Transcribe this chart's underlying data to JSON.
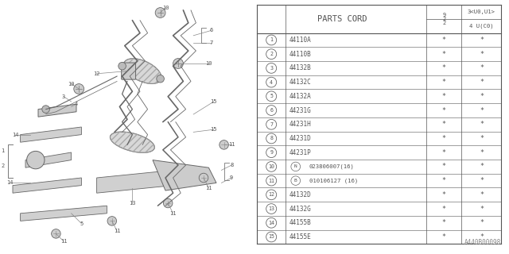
{
  "title": "PARTS CORD",
  "col_header_narrow": "9\n2\n2",
  "col_header_wide_top": "3<U0,U1>",
  "col_header_wide_bot": "4 U(C0)",
  "rows": [
    {
      "num": "1",
      "code": "44110A",
      "n_prefix": "",
      "b_prefix": "",
      "star1": "*",
      "star2": "*"
    },
    {
      "num": "2",
      "code": "44110B",
      "n_prefix": "",
      "b_prefix": "",
      "star1": "*",
      "star2": "*"
    },
    {
      "num": "3",
      "code": "44132B",
      "n_prefix": "",
      "b_prefix": "",
      "star1": "*",
      "star2": "*"
    },
    {
      "num": "4",
      "code": "44132C",
      "n_prefix": "",
      "b_prefix": "",
      "star1": "*",
      "star2": "*"
    },
    {
      "num": "5",
      "code": "44132A",
      "n_prefix": "",
      "b_prefix": "",
      "star1": "*",
      "star2": "*"
    },
    {
      "num": "6",
      "code": "44231G",
      "n_prefix": "",
      "b_prefix": "",
      "star1": "*",
      "star2": "*"
    },
    {
      "num": "7",
      "code": "44231H",
      "n_prefix": "",
      "b_prefix": "",
      "star1": "*",
      "star2": "*"
    },
    {
      "num": "8",
      "code": "44231D",
      "n_prefix": "",
      "b_prefix": "",
      "star1": "*",
      "star2": "*"
    },
    {
      "num": "9",
      "code": "44231P",
      "n_prefix": "",
      "b_prefix": "",
      "star1": "*",
      "star2": "*"
    },
    {
      "num": "10",
      "code": "023806007(16)",
      "n_prefix": "N",
      "b_prefix": "",
      "star1": "*",
      "star2": "*"
    },
    {
      "num": "11",
      "code": "010106127 (16)",
      "n_prefix": "",
      "b_prefix": "B",
      "star1": "*",
      "star2": "*"
    },
    {
      "num": "12",
      "code": "44132D",
      "n_prefix": "",
      "b_prefix": "",
      "star1": "*",
      "star2": "*"
    },
    {
      "num": "13",
      "code": "44132G",
      "n_prefix": "",
      "b_prefix": "",
      "star1": "*",
      "star2": "*"
    },
    {
      "num": "14",
      "code": "44155B",
      "n_prefix": "",
      "b_prefix": "",
      "star1": "*",
      "star2": "*"
    },
    {
      "num": "15",
      "code": "44155E",
      "n_prefix": "",
      "b_prefix": "",
      "star1": "*",
      "star2": "*"
    }
  ],
  "bg_color": "#ffffff",
  "line_color": "#555555",
  "text_color": "#555555",
  "diagram_label": "A440B00098"
}
